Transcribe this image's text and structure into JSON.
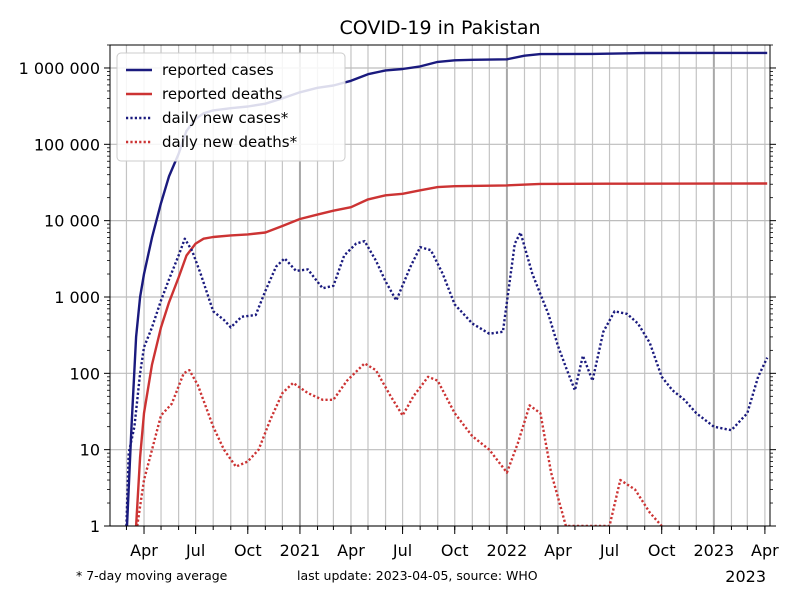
{
  "chart_data": {
    "type": "line",
    "title": "COVID-19 in Pakistan",
    "y_scale": "log",
    "ylim": [
      1,
      2000000
    ],
    "xlim": [
      "2020-02-01",
      "2023-04-10"
    ],
    "grid": true,
    "legend_position": "top-left",
    "y_ticks": [
      {
        "value": 1,
        "label": "1"
      },
      {
        "value": 10,
        "label": "10"
      },
      {
        "value": 100,
        "label": "100"
      },
      {
        "value": 1000,
        "label": "1 000"
      },
      {
        "value": 10000,
        "label": "10 000"
      },
      {
        "value": 100000,
        "label": "100 000"
      },
      {
        "value": 1000000,
        "label": "1 000 000"
      }
    ],
    "x_ticks": [
      {
        "date": "2020-04-01",
        "label": "Apr"
      },
      {
        "date": "2020-07-01",
        "label": "Jul"
      },
      {
        "date": "2020-10-01",
        "label": "Oct"
      },
      {
        "date": "2021-01-01",
        "label": "2021"
      },
      {
        "date": "2021-04-01",
        "label": "Apr"
      },
      {
        "date": "2021-07-01",
        "label": "Jul"
      },
      {
        "date": "2021-10-01",
        "label": "Oct"
      },
      {
        "date": "2022-01-01",
        "label": "2022"
      },
      {
        "date": "2022-04-01",
        "label": "Apr"
      },
      {
        "date": "2022-07-01",
        "label": "Jul"
      },
      {
        "date": "2022-10-01",
        "label": "Oct"
      },
      {
        "date": "2023-01-01",
        "label": "2023"
      },
      {
        "date": "2023-04-01",
        "label": "Apr"
      }
    ],
    "x_offset_label": "2023",
    "series": [
      {
        "name": "reported cases",
        "color": "#1a1a7e",
        "style": "solid",
        "points": [
          [
            "2020-03-02",
            1
          ],
          [
            "2020-03-10",
            20
          ],
          [
            "2020-03-18",
            300
          ],
          [
            "2020-03-25",
            1000
          ],
          [
            "2020-04-01",
            2000
          ],
          [
            "2020-04-15",
            6000
          ],
          [
            "2020-05-01",
            17000
          ],
          [
            "2020-05-15",
            38000
          ],
          [
            "2020-06-01",
            75000
          ],
          [
            "2020-06-15",
            150000
          ],
          [
            "2020-07-01",
            215000
          ],
          [
            "2020-07-15",
            255000
          ],
          [
            "2020-08-01",
            278000
          ],
          [
            "2020-09-01",
            297000
          ],
          [
            "2020-10-01",
            313000
          ],
          [
            "2020-11-01",
            340000
          ],
          [
            "2020-12-01",
            400000
          ],
          [
            "2021-01-01",
            480000
          ],
          [
            "2021-02-01",
            550000
          ],
          [
            "2021-03-01",
            590000
          ],
          [
            "2021-04-01",
            680000
          ],
          [
            "2021-05-01",
            830000
          ],
          [
            "2021-06-01",
            930000
          ],
          [
            "2021-07-01",
            970000
          ],
          [
            "2021-08-01",
            1050000
          ],
          [
            "2021-09-01",
            1200000
          ],
          [
            "2021-10-01",
            1260000
          ],
          [
            "2021-11-01",
            1280000
          ],
          [
            "2022-01-01",
            1300000
          ],
          [
            "2022-02-01",
            1450000
          ],
          [
            "2022-03-01",
            1520000
          ],
          [
            "2022-06-01",
            1530000
          ],
          [
            "2022-09-01",
            1570000
          ],
          [
            "2023-01-01",
            1575000
          ],
          [
            "2023-04-05",
            1578000
          ]
        ]
      },
      {
        "name": "reported deaths",
        "color": "#cc3333",
        "style": "solid",
        "points": [
          [
            "2020-03-18",
            1
          ],
          [
            "2020-03-25",
            8
          ],
          [
            "2020-04-01",
            30
          ],
          [
            "2020-04-15",
            130
          ],
          [
            "2020-05-01",
            400
          ],
          [
            "2020-05-15",
            850
          ],
          [
            "2020-06-01",
            1800
          ],
          [
            "2020-06-15",
            3500
          ],
          [
            "2020-07-01",
            5000
          ],
          [
            "2020-07-15",
            5800
          ],
          [
            "2020-08-01",
            6100
          ],
          [
            "2020-09-01",
            6400
          ],
          [
            "2020-10-01",
            6600
          ],
          [
            "2020-11-01",
            7000
          ],
          [
            "2020-12-01",
            8500
          ],
          [
            "2021-01-01",
            10500
          ],
          [
            "2021-02-01",
            12000
          ],
          [
            "2021-03-01",
            13500
          ],
          [
            "2021-04-01",
            15000
          ],
          [
            "2021-05-01",
            19000
          ],
          [
            "2021-06-01",
            21500
          ],
          [
            "2021-07-01",
            22500
          ],
          [
            "2021-08-01",
            25000
          ],
          [
            "2021-09-01",
            27500
          ],
          [
            "2021-10-01",
            28300
          ],
          [
            "2022-01-01",
            29000
          ],
          [
            "2022-03-01",
            30300
          ],
          [
            "2022-07-01",
            30500
          ],
          [
            "2023-01-01",
            30600
          ],
          [
            "2023-04-05",
            30650
          ]
        ]
      },
      {
        "name": "daily new cases*",
        "color": "#1a1a7e",
        "style": "dotted",
        "points": [
          [
            "2020-03-01",
            1
          ],
          [
            "2020-03-05",
            9
          ],
          [
            "2020-03-15",
            20
          ],
          [
            "2020-03-25",
            100
          ],
          [
            "2020-04-01",
            220
          ],
          [
            "2020-04-15",
            400
          ],
          [
            "2020-05-01",
            900
          ],
          [
            "2020-05-15",
            1700
          ],
          [
            "2020-06-01",
            3500
          ],
          [
            "2020-06-12",
            5800
          ],
          [
            "2020-06-25",
            4000
          ],
          [
            "2020-07-10",
            2000
          ],
          [
            "2020-08-01",
            650
          ],
          [
            "2020-08-20",
            500
          ],
          [
            "2020-09-01",
            400
          ],
          [
            "2020-09-20",
            550
          ],
          [
            "2020-10-15",
            580
          ],
          [
            "2020-11-01",
            1200
          ],
          [
            "2020-11-20",
            2500
          ],
          [
            "2020-12-05",
            3200
          ],
          [
            "2020-12-25",
            2200
          ],
          [
            "2021-01-15",
            2300
          ],
          [
            "2021-02-10",
            1300
          ],
          [
            "2021-03-01",
            1400
          ],
          [
            "2021-03-20",
            3500
          ],
          [
            "2021-04-10",
            5000
          ],
          [
            "2021-04-25",
            5400
          ],
          [
            "2021-05-15",
            3000
          ],
          [
            "2021-06-01",
            1600
          ],
          [
            "2021-06-20",
            900
          ],
          [
            "2021-07-15",
            2500
          ],
          [
            "2021-08-01",
            4500
          ],
          [
            "2021-08-20",
            4100
          ],
          [
            "2021-09-10",
            2000
          ],
          [
            "2021-10-01",
            800
          ],
          [
            "2021-11-01",
            450
          ],
          [
            "2021-12-01",
            330
          ],
          [
            "2021-12-25",
            350
          ],
          [
            "2022-01-15",
            5000
          ],
          [
            "2022-01-25",
            7000
          ],
          [
            "2022-02-15",
            2000
          ],
          [
            "2022-03-15",
            600
          ],
          [
            "2022-04-01",
            230
          ],
          [
            "2022-04-15",
            120
          ],
          [
            "2022-05-01",
            60
          ],
          [
            "2022-05-15",
            170
          ],
          [
            "2022-06-01",
            80
          ],
          [
            "2022-06-20",
            350
          ],
          [
            "2022-07-10",
            650
          ],
          [
            "2022-08-01",
            600
          ],
          [
            "2022-08-20",
            450
          ],
          [
            "2022-09-10",
            250
          ],
          [
            "2022-10-01",
            90
          ],
          [
            "2022-10-20",
            60
          ],
          [
            "2022-11-10",
            45
          ],
          [
            "2022-12-01",
            30
          ],
          [
            "2023-01-01",
            20
          ],
          [
            "2023-02-01",
            18
          ],
          [
            "2023-03-01",
            30
          ],
          [
            "2023-03-20",
            90
          ],
          [
            "2023-04-05",
            160
          ]
        ]
      },
      {
        "name": "daily new deaths*",
        "color": "#cc3333",
        "style": "dotted",
        "points": [
          [
            "2020-03-20",
            1
          ],
          [
            "2020-04-01",
            4
          ],
          [
            "2020-04-15",
            10
          ],
          [
            "2020-05-01",
            28
          ],
          [
            "2020-05-20",
            40
          ],
          [
            "2020-06-10",
            100
          ],
          [
            "2020-06-20",
            110
          ],
          [
            "2020-07-05",
            70
          ],
          [
            "2020-08-01",
            20
          ],
          [
            "2020-08-20",
            10
          ],
          [
            "2020-09-10",
            6
          ],
          [
            "2020-10-01",
            7
          ],
          [
            "2020-10-20",
            10
          ],
          [
            "2020-11-10",
            25
          ],
          [
            "2020-12-01",
            55
          ],
          [
            "2020-12-20",
            75
          ],
          [
            "2021-01-15",
            55
          ],
          [
            "2021-02-10",
            45
          ],
          [
            "2021-03-01",
            45
          ],
          [
            "2021-03-25",
            80
          ],
          [
            "2021-04-25",
            135
          ],
          [
            "2021-05-15",
            110
          ],
          [
            "2021-06-10",
            50
          ],
          [
            "2021-07-01",
            28
          ],
          [
            "2021-07-20",
            50
          ],
          [
            "2021-08-15",
            90
          ],
          [
            "2021-09-01",
            80
          ],
          [
            "2021-10-01",
            30
          ],
          [
            "2021-11-01",
            15
          ],
          [
            "2021-12-01",
            10
          ],
          [
            "2022-01-01",
            5
          ],
          [
            "2022-01-20",
            12
          ],
          [
            "2022-02-10",
            38
          ],
          [
            "2022-03-01",
            30
          ],
          [
            "2022-03-20",
            5
          ],
          [
            "2022-04-15",
            1
          ],
          [
            "2022-07-01",
            1
          ],
          [
            "2022-07-20",
            4
          ],
          [
            "2022-08-15",
            3
          ],
          [
            "2022-09-10",
            1.5
          ],
          [
            "2022-10-01",
            1
          ]
        ]
      }
    ],
    "footnote_left": "* 7-day moving average",
    "footnote_right": "last update: 2023-04-05, source: WHO"
  }
}
